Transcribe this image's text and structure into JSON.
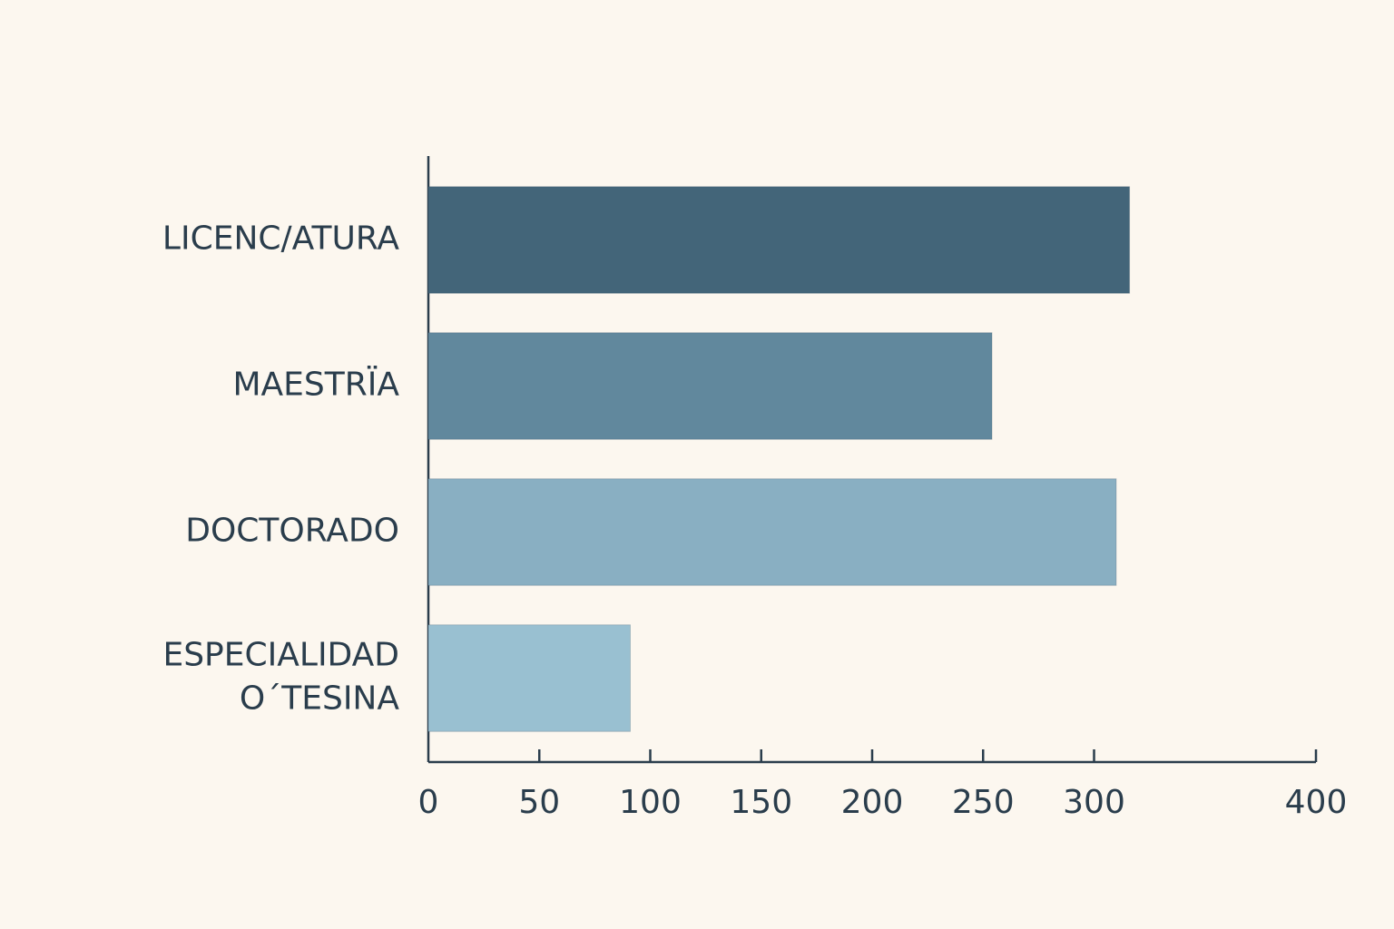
{
  "chart_data": {
    "type": "hbar",
    "categories": [
      "LICENC/ATURA",
      "MAESTRÏA",
      "DOCTORADO",
      "ESPECIALIDAD\nO´TESINA"
    ],
    "values": [
      316,
      254,
      310,
      91
    ],
    "colors": [
      "#436579",
      "#61889d",
      "#89afc2",
      "#99c0d1"
    ],
    "xlim": [
      0,
      400
    ],
    "xticks": [
      0,
      50,
      100,
      150,
      200,
      250,
      300,
      400
    ]
  }
}
